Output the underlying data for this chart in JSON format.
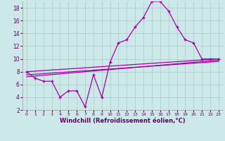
{
  "title": "",
  "xlabel": "Windchill (Refroidissement éolien,°C)",
  "background_color": "#cce8e8",
  "grid_color": "#aacccc",
  "line_color": "#aa00aa",
  "x": [
    0,
    1,
    2,
    3,
    4,
    5,
    6,
    7,
    8,
    9,
    10,
    11,
    12,
    13,
    14,
    15,
    16,
    17,
    18,
    19,
    20,
    21,
    22,
    23
  ],
  "series1": [
    8.0,
    7.0,
    6.5,
    6.5,
    4.0,
    5.0,
    5.0,
    2.5,
    7.5,
    4.0,
    9.5,
    12.5,
    13.0,
    15.0,
    16.5,
    19.0,
    19.0,
    17.5,
    15.0,
    13.0,
    12.5,
    10.0,
    10.0,
    10.0
  ],
  "line2_x": [
    0,
    23
  ],
  "line2_y": [
    8.0,
    10.0
  ],
  "line3_x": [
    0,
    23
  ],
  "line3_y": [
    7.2,
    9.8
  ],
  "line4_x": [
    0,
    23
  ],
  "line4_y": [
    7.5,
    9.6
  ],
  "xlim": [
    -0.5,
    23.5
  ],
  "ylim": [
    2,
    19
  ],
  "yticks": [
    2,
    4,
    6,
    8,
    10,
    12,
    14,
    16,
    18
  ],
  "xticks": [
    0,
    1,
    2,
    3,
    4,
    5,
    6,
    7,
    8,
    9,
    10,
    11,
    12,
    13,
    14,
    15,
    16,
    17,
    18,
    19,
    20,
    21,
    22,
    23
  ],
  "tick_label_color": "#660066",
  "xlabel_color": "#660066",
  "spine_color": "#999999",
  "marker": "+"
}
